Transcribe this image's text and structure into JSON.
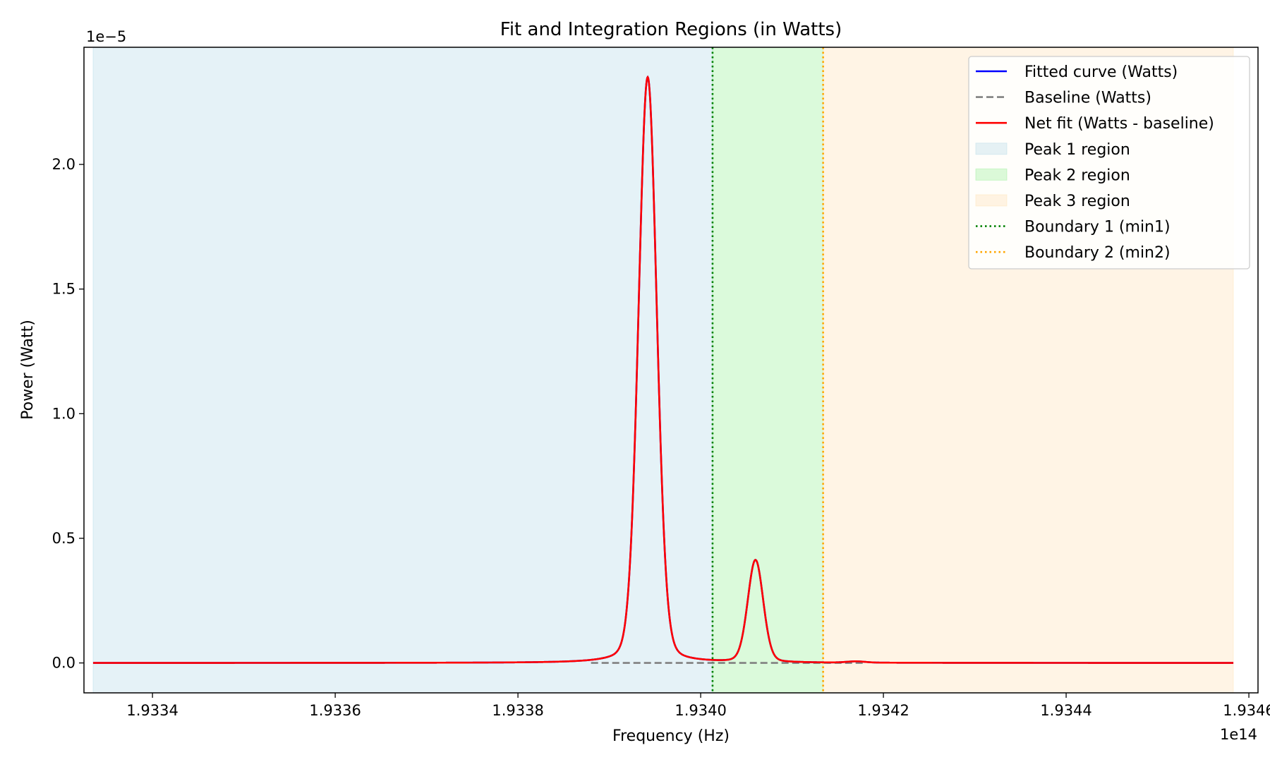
{
  "chart_data": {
    "type": "line",
    "title": "Fit and Integration Regions (in Watts)",
    "xlabel": "Frequency (Hz)",
    "ylabel": "Power (Watt)",
    "x_scale_note": "1e14",
    "y_scale_note": "1e−5",
    "xlim": [
      193332.5,
      193461.0
    ],
    "ylim": [
      -0.12,
      2.47
    ],
    "x_ticks": [
      {
        "value": 193340,
        "label": "1.9334"
      },
      {
        "value": 193360,
        "label": "1.9336"
      },
      {
        "value": 193380,
        "label": "1.9338"
      },
      {
        "value": 193400,
        "label": "1.9340"
      },
      {
        "value": 193420,
        "label": "1.9342"
      },
      {
        "value": 193440,
        "label": "1.9344"
      },
      {
        "value": 193460,
        "label": "1.9346"
      }
    ],
    "y_ticks": [
      {
        "value": 0.0,
        "label": "0.0"
      },
      {
        "value": 0.5,
        "label": "0.5"
      },
      {
        "value": 1.0,
        "label": "1.0"
      },
      {
        "value": 1.5,
        "label": "1.5"
      },
      {
        "value": 2.0,
        "label": "2.0"
      }
    ],
    "x_domain": [
      193333.5,
      193458.3
    ],
    "regions": [
      {
        "name": "Peak 1 region",
        "x_start": 193333.5,
        "x_end": 193401.3,
        "color": "#add8e6"
      },
      {
        "name": "Peak 2 region",
        "x_start": 193401.3,
        "x_end": 193413.4,
        "color": "#90ee90"
      },
      {
        "name": "Peak 3 region",
        "x_start": 193413.4,
        "x_end": 193458.3,
        "color": "#ffdead"
      }
    ],
    "boundaries": [
      {
        "name": "Boundary 1 (min1)",
        "x": 193401.3,
        "color": "#008000"
      },
      {
        "name": "Boundary 2 (min2)",
        "x": 193413.4,
        "color": "#ffa500"
      }
    ],
    "peaks": [
      {
        "center": 193394.2,
        "amplitude": 2.35,
        "sigma": 1.0
      },
      {
        "center": 193406.0,
        "amplitude": 0.41,
        "sigma": 0.85
      },
      {
        "center": 193417.0,
        "amplitude": 0.005,
        "sigma": 1.0
      }
    ],
    "series": [
      {
        "name": "Fitted curve (Watts)",
        "color": "#0000ff",
        "style": "solid"
      },
      {
        "name": "Baseline (Watts)",
        "color": "#808080",
        "style": "dashed",
        "values": 0.0,
        "x_range": [
          193388.0,
          193418.0
        ]
      },
      {
        "name": "Net fit (Watts - baseline)",
        "color": "#ff0000",
        "style": "solid"
      }
    ],
    "legend_position": "top-right",
    "grid": false
  }
}
